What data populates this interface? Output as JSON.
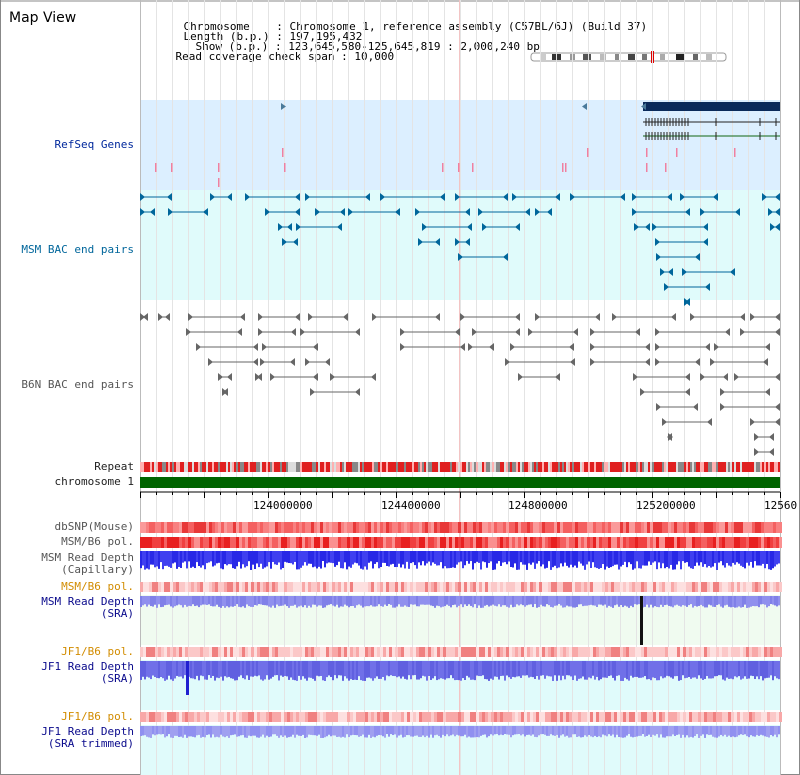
{
  "title": "Map View",
  "header": {
    "chromosome_label": "Chromosome",
    "chromosome_value": "Chromosome 1, reference assembly (C57BL/6J) (Build 37)",
    "length_label": "Length (b.p.)",
    "length_value": "197,195,432",
    "show_label": "Show (b.p.)",
    "show_value": "123,645,580-125,645,819 : 2,000,240 bp",
    "coverage_label": "Read coverage check span",
    "coverage_value": "10,000"
  },
  "tracks": {
    "refseq": "RefSeq Genes",
    "msm_bac": "MSM BAC end pairs",
    "b6n_bac": "B6N BAC end pairs",
    "repeat": "Repeat",
    "chromosome": "chromosome 1",
    "dbsnp": "dbSNP(Mouse)",
    "msm_b6_pol_1": "MSM/B6 pol.",
    "msm_read_depth_cap_1": "MSM Read Depth",
    "msm_read_depth_cap_2": "(Capillary)",
    "msm_b6_pol_2": "MSM/B6 pol.",
    "msm_read_depth_sra_1": "MSM Read Depth",
    "msm_read_depth_sra_2": "(SRA)",
    "jf1_b6_pol_1": "JF1/B6 pol.",
    "jf1_read_depth_1": "JF1 Read Depth",
    "jf1_read_depth_2": "(SRA)",
    "jf1_b6_pol_2": "JF1/B6 pol.",
    "jf1_trim_1": "JF1 Read Depth",
    "jf1_trim_2": "(SRA trimmed)"
  },
  "axis": {
    "ticks": [
      "124000000",
      "124400000",
      "124800000",
      "125200000",
      "12560"
    ]
  },
  "colors": {
    "refseq_bg": "#dcefff",
    "msm_bg": "#e0fbfb",
    "bac_teal": "#00669b",
    "bac_gray": "#666666",
    "chromosome_green": "#006400",
    "gene_navy": "#0a2a5a",
    "depth_blue": "#2828e6",
    "sra_bg": "#f0fbf0"
  }
}
